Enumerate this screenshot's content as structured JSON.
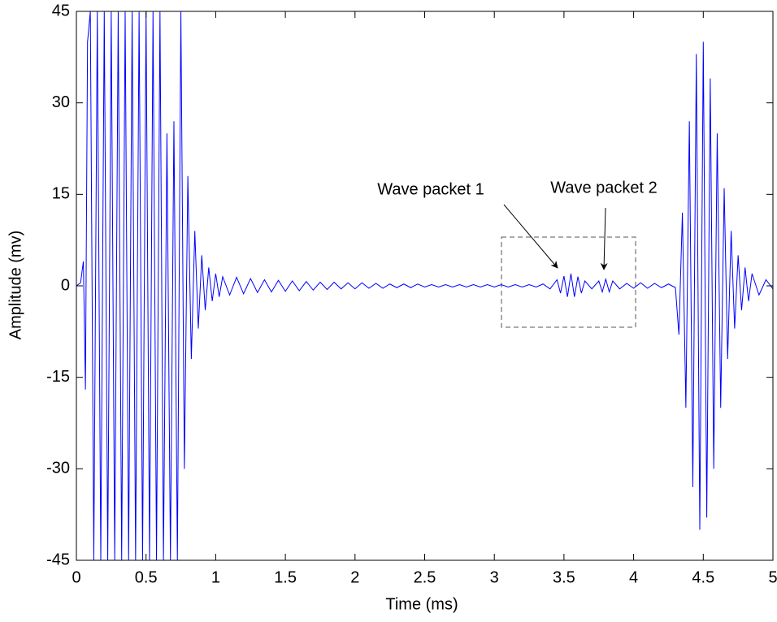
{
  "chart_data": {
    "type": "line",
    "xlabel": "Time (ms)",
    "ylabel": "Amplitude (mv)",
    "annotations": [
      "Wave packet 1",
      "Wave packet 2"
    ],
    "xlim": [
      0,
      5
    ],
    "ylim": [
      -45,
      45
    ],
    "xticks": [
      0,
      0.5,
      1,
      1.5,
      2,
      2.5,
      3,
      3.5,
      4,
      4.5,
      5
    ],
    "yticks": [
      -45,
      -30,
      -15,
      0,
      15,
      30,
      45
    ],
    "series": [
      {
        "color": "#0000ff",
        "x": [
          0,
          0.03,
          0.05,
          0.065,
          0.08,
          0.1,
          0.125,
          0.15,
          0.175,
          0.2,
          0.225,
          0.25,
          0.275,
          0.3,
          0.325,
          0.35,
          0.375,
          0.4,
          0.425,
          0.45,
          0.475,
          0.5,
          0.525,
          0.55,
          0.575,
          0.6,
          0.625,
          0.65,
          0.675,
          0.7,
          0.725,
          0.75,
          0.775,
          0.8,
          0.825,
          0.85,
          0.875,
          0.9,
          0.925,
          0.95,
          0.975,
          1.0,
          1.025,
          1.05,
          1.1,
          1.15,
          1.2,
          1.25,
          1.3,
          1.35,
          1.4,
          1.45,
          1.5,
          1.55,
          1.6,
          1.65,
          1.7,
          1.75,
          1.8,
          1.85,
          1.9,
          1.95,
          2.0,
          2.05,
          2.1,
          2.15,
          2.2,
          2.25,
          2.3,
          2.35,
          2.4,
          2.45,
          2.5,
          2.55,
          2.6,
          2.65,
          2.7,
          2.75,
          2.8,
          2.85,
          2.9,
          2.95,
          3.0,
          3.05,
          3.1,
          3.15,
          3.2,
          3.25,
          3.3,
          3.35,
          3.4,
          3.45,
          3.475,
          3.5,
          3.525,
          3.55,
          3.575,
          3.6,
          3.625,
          3.65,
          3.7,
          3.75,
          3.775,
          3.8,
          3.825,
          3.85,
          3.9,
          3.95,
          4.0,
          4.05,
          4.1,
          4.15,
          4.2,
          4.25,
          4.3,
          4.325,
          4.35,
          4.375,
          4.4,
          4.425,
          4.45,
          4.475,
          4.5,
          4.525,
          4.55,
          4.575,
          4.6,
          4.625,
          4.65,
          4.675,
          4.7,
          4.725,
          4.75,
          4.775,
          4.8,
          4.825,
          4.85,
          4.9,
          4.95,
          5.0
        ],
        "values": [
          0,
          0.5,
          4,
          -17,
          40,
          45,
          -45,
          45,
          -45,
          45,
          -45,
          45,
          -45,
          45,
          -45,
          45,
          -45,
          45,
          -45,
          45,
          -45,
          45,
          -45,
          45,
          -45,
          45,
          -45,
          25,
          -45,
          27,
          -45,
          45,
          -30,
          18,
          -12,
          9,
          -7,
          5,
          -4,
          3,
          -2.5,
          2,
          -1.8,
          1.5,
          -1.5,
          1.4,
          -1.3,
          1.2,
          -1.1,
          1,
          -1,
          0.9,
          -0.9,
          0.8,
          -0.8,
          0.7,
          -0.7,
          0.6,
          -0.6,
          0.6,
          -0.5,
          0.5,
          -0.5,
          0.5,
          -0.4,
          0.4,
          -0.4,
          0.3,
          -0.3,
          0.3,
          -0.3,
          0.3,
          -0.2,
          0.2,
          -0.2,
          0.2,
          -0.2,
          0.2,
          -0.2,
          0.2,
          -0.2,
          0.2,
          -0.2,
          0.2,
          -0.2,
          0.2,
          -0.2,
          0.2,
          -0.2,
          0.3,
          -0.5,
          1,
          -1.2,
          1.6,
          -1.8,
          2,
          -1.8,
          1.5,
          -1.2,
          0.8,
          -0.5,
          0.8,
          -1,
          1.1,
          -1,
          0.8,
          -0.5,
          0.4,
          -0.4,
          0.5,
          -0.4,
          0.4,
          -0.3,
          0.3,
          -0.3,
          -8,
          12,
          -20,
          27,
          -33,
          38,
          -40,
          40,
          -38,
          34,
          -30,
          25,
          -20,
          16,
          -12,
          9,
          -7,
          5,
          -4,
          3,
          -2.5,
          2,
          -1.5,
          1,
          -0.5
        ]
      }
    ]
  }
}
